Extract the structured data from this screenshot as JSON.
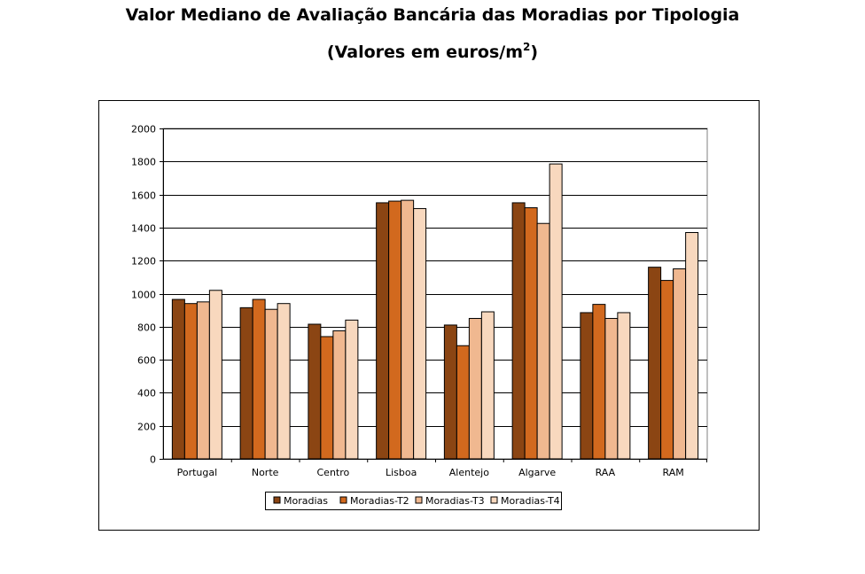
{
  "title_line1": "Valor Mediano de Avaliação Bancária das Moradias por Tipologia",
  "title_line2_main": "(Valores em euros/m",
  "title_line2_sup": "2",
  "title_line2_end": ")",
  "colors": {
    "Moradias": "#8B4513",
    "Moradias-T2": "#D2691E",
    "Moradias-T3": "#F0B890",
    "Moradias-T4": "#F8D8BE"
  },
  "chart_data": {
    "type": "bar",
    "title": "Valor Mediano de Avaliação Bancária das Moradias por Tipologia (Valores em euros/m2)",
    "xlabel": "",
    "ylabel": "",
    "ylim": [
      0,
      2000
    ],
    "yticks": [
      0,
      200,
      400,
      600,
      800,
      1000,
      1200,
      1400,
      1600,
      1800,
      2000
    ],
    "grid": true,
    "legend": "bottom",
    "categories": [
      "Portugal",
      "Norte",
      "Centro",
      "Lisboa",
      "Alentejo",
      "Algarve",
      "RAA",
      "RAM"
    ],
    "series": [
      {
        "name": "Moradias",
        "values": [
          965,
          915,
          815,
          1550,
          810,
          1550,
          885,
          1160
        ]
      },
      {
        "name": "Moradias-T2",
        "values": [
          940,
          965,
          740,
          1560,
          685,
          1520,
          935,
          1080
        ]
      },
      {
        "name": "Moradias-T3",
        "values": [
          950,
          905,
          775,
          1565,
          850,
          1425,
          850,
          1150
        ]
      },
      {
        "name": "Moradias-T4",
        "values": [
          1020,
          940,
          840,
          1515,
          890,
          1785,
          885,
          1370
        ]
      }
    ]
  }
}
